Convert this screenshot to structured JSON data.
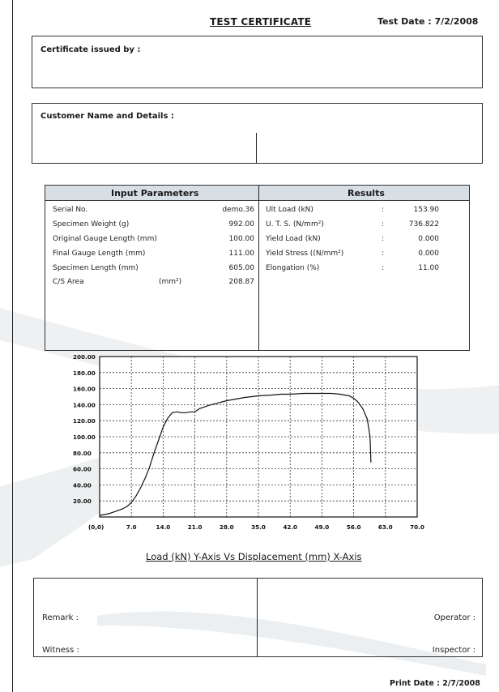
{
  "header": {
    "title": "TEST CERTIFICATE",
    "test_date": "Test Date : 7/2/2008"
  },
  "issued_by": {
    "label": "Certificate issued by :"
  },
  "customer": {
    "label": "Customer Name and Details :"
  },
  "input_parameters": {
    "heading": "Input Parameters",
    "rows": [
      {
        "label": "Serial No.",
        "value": "demo.36"
      },
      {
        "label": "Specimen Weight (g)",
        "value": "992.00"
      },
      {
        "label": "Original Gauge Length (mm)",
        "value": "100.00"
      },
      {
        "label": "Final Gauge Length (mm)",
        "value": "111.00"
      },
      {
        "label": "Specimen Length (mm)",
        "value": "605.00"
      }
    ],
    "area": {
      "label": "C/S Area",
      "unit": "(mm²)",
      "value": "208.87"
    }
  },
  "results": {
    "heading": "Results",
    "rows": [
      {
        "label": "Ult Load  (kN)",
        "sep": ":",
        "value": "153.90"
      },
      {
        "label": "U. T. S.  (N/mm²)",
        "sep": ":",
        "value": "736.822"
      },
      {
        "label": "Yield Load  (kN)",
        "sep": ":",
        "value": "0.000"
      },
      {
        "label": "Yield Stress ((N/mm²)",
        "sep": ":",
        "value": "0.000"
      },
      {
        "label": "Elongation  (%)",
        "sep": ":",
        "value": "11.00"
      }
    ]
  },
  "chart_data": {
    "type": "line",
    "title": "",
    "xlabel": "Load (kN) Y-Axis  Vs  Displacement (mm) X-Axis",
    "ylabel": "",
    "xlim": [
      0,
      70
    ],
    "ylim": [
      0,
      200
    ],
    "origin_label": "(0,0)",
    "x_ticks": [
      "7.0",
      "14.0",
      "21.0",
      "28.0",
      "35.0",
      "42.0",
      "49.0",
      "56.0",
      "63.0",
      "70.0"
    ],
    "y_ticks": [
      "20.00",
      "40.00",
      "60.00",
      "80.00",
      "100.00",
      "120.00",
      "140.00",
      "160.00",
      "180.00",
      "200.00"
    ],
    "grid": true,
    "series": [
      {
        "x": [
          0,
          1,
          2,
          3,
          4,
          5,
          6,
          7,
          8,
          9,
          10,
          11,
          12,
          13,
          14,
          15,
          16,
          17,
          18,
          19,
          20,
          21,
          22,
          24,
          26,
          28,
          30,
          32,
          35,
          38,
          40,
          42,
          45,
          47,
          49,
          51,
          53,
          55,
          56,
          57,
          58,
          59,
          59.6,
          59.8
        ],
        "y": [
          2,
          3,
          4,
          6,
          8,
          10,
          13,
          18,
          26,
          36,
          48,
          62,
          80,
          96,
          112,
          123,
          130,
          131,
          130,
          130,
          131,
          131,
          135,
          139,
          142,
          145,
          147,
          149,
          151,
          152,
          153,
          153,
          154,
          154,
          154,
          154,
          153,
          151,
          148,
          143,
          135,
          122,
          100,
          68
        ]
      }
    ]
  },
  "signoff": {
    "remark": "Remark :",
    "witness": "Witness :",
    "operator": "Operator :",
    "inspector": "Inspector :"
  },
  "footer": {
    "print_date": "Print Date : 2/7/2008"
  },
  "colors": {
    "header_fill": "#d7dee4",
    "watermark": "#e7eaec"
  }
}
